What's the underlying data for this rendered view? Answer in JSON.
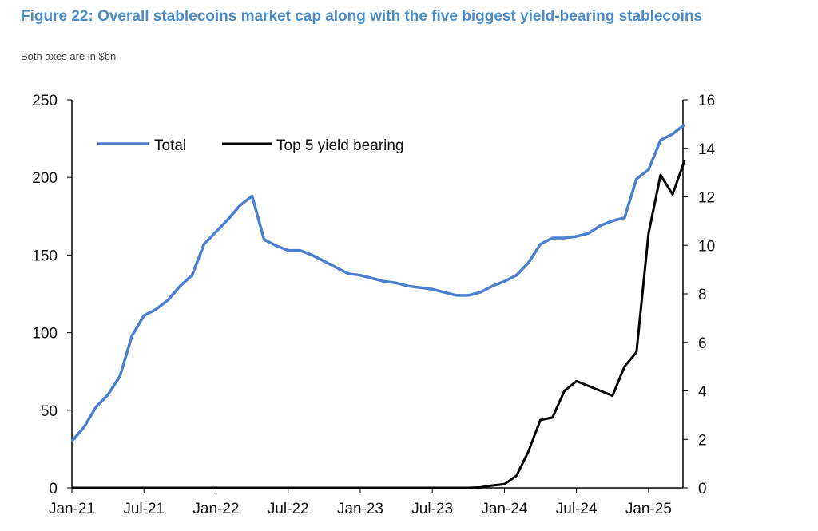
{
  "chart_data": {
    "type": "line",
    "title": "Figure 22: Overall stablecoins market cap along with the five biggest yield-bearing stablecoins",
    "subtitle": "Both axes are in $bn",
    "xlabel": "",
    "ylabel_left": "",
    "ylabel_right": "",
    "ylim_left": [
      0,
      250
    ],
    "ylim_right": [
      0,
      16
    ],
    "yticks_left": [
      "0",
      "50",
      "100",
      "150",
      "200",
      "250"
    ],
    "yticks_right": [
      "0",
      "2",
      "4",
      "6",
      "8",
      "10",
      "12",
      "14",
      "16"
    ],
    "xticks": [
      "Jan-21",
      "Jul-21",
      "Jan-22",
      "Jul-22",
      "Jan-23",
      "Jul-23",
      "Jan-24",
      "Jul-24",
      "Jan-25"
    ],
    "legend_position": "top-left",
    "grid": false,
    "x": [
      "2021-01",
      "2021-02",
      "2021-03",
      "2021-04",
      "2021-05",
      "2021-06",
      "2021-07",
      "2021-08",
      "2021-09",
      "2021-10",
      "2021-11",
      "2021-12",
      "2022-01",
      "2022-02",
      "2022-03",
      "2022-04",
      "2022-05",
      "2022-06",
      "2022-07",
      "2022-08",
      "2022-09",
      "2022-10",
      "2022-11",
      "2022-12",
      "2023-01",
      "2023-02",
      "2023-03",
      "2023-04",
      "2023-05",
      "2023-06",
      "2023-07",
      "2023-08",
      "2023-09",
      "2023-10",
      "2023-11",
      "2023-12",
      "2024-01",
      "2024-02",
      "2024-03",
      "2024-04",
      "2024-05",
      "2024-06",
      "2024-07",
      "2024-08",
      "2024-09",
      "2024-10",
      "2024-11",
      "2024-12",
      "2025-01",
      "2025-02",
      "2025-03",
      "2025-04"
    ],
    "series": [
      {
        "name": "Total",
        "axis": "left",
        "color": "#4a7fd0",
        "values": [
          30,
          39,
          52,
          60,
          72,
          98,
          111,
          115,
          121,
          130,
          137,
          157,
          165,
          173,
          182,
          188,
          160,
          156,
          153,
          153,
          150,
          146,
          142,
          138,
          137,
          135,
          133,
          132,
          130,
          129,
          128,
          126,
          124,
          124,
          126,
          130,
          133,
          137,
          145,
          157,
          161,
          161,
          162,
          164,
          169,
          172,
          174,
          199,
          205,
          224,
          228,
          234
        ]
      },
      {
        "name": "Top 5 yield bearing",
        "axis": "right",
        "color": "#000000",
        "values": [
          0,
          0,
          0,
          0,
          0,
          0,
          0,
          0,
          0,
          0,
          0,
          0,
          0,
          0,
          0,
          0,
          0,
          0,
          0,
          0,
          0,
          0,
          0,
          0,
          0,
          0,
          0,
          0,
          0,
          0,
          0,
          0,
          0,
          0,
          0.02,
          0.1,
          0.15,
          0.5,
          1.5,
          2.8,
          2.9,
          4.0,
          4.4,
          4.2,
          4.0,
          3.8,
          5.0,
          5.6,
          10.5,
          12.9,
          12.1,
          13.5
        ]
      }
    ]
  }
}
